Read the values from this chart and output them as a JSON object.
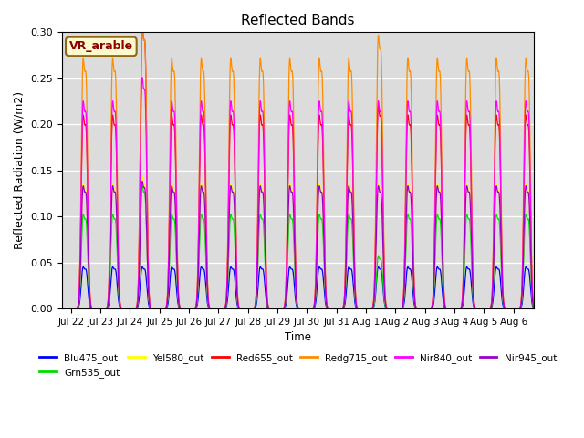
{
  "title": "Reflected Bands",
  "xlabel": "Time",
  "ylabel": "Reflected Radiation (W/m2)",
  "annotation_text": "VR_arable",
  "annotation_color": "#8B0000",
  "annotation_bg": "#FFFACD",
  "annotation_border": "#8B6914",
  "background_color": "#DCDCDC",
  "ylim": [
    0,
    0.3
  ],
  "yticks": [
    0.0,
    0.05,
    0.1,
    0.15,
    0.2,
    0.25,
    0.3
  ],
  "series": [
    {
      "name": "Blu475_out",
      "color": "#0000FF",
      "peak": 0.044
    },
    {
      "name": "Grn535_out",
      "color": "#00DD00",
      "peak": 0.1
    },
    {
      "name": "Yel580_out",
      "color": "#FFFF00",
      "peak": 0.133
    },
    {
      "name": "Red655_out",
      "color": "#FF0000",
      "peak": 0.205
    },
    {
      "name": "Redg715_out",
      "color": "#FF8C00",
      "peak": 0.265
    },
    {
      "name": "Nir840_out",
      "color": "#FF00FF",
      "peak": 0.22
    },
    {
      "name": "Nir945_out",
      "color": "#9900CC",
      "peak": 0.13
    }
  ],
  "n_points": 5000,
  "special_peaks_day2": [
    0.044,
    0.13,
    0.14,
    0.3,
    0.3,
    0.245,
    0.135
  ],
  "special_peaks_aug1": [
    0.044,
    0.055,
    0.133,
    0.215,
    0.29,
    0.22,
    0.13
  ]
}
